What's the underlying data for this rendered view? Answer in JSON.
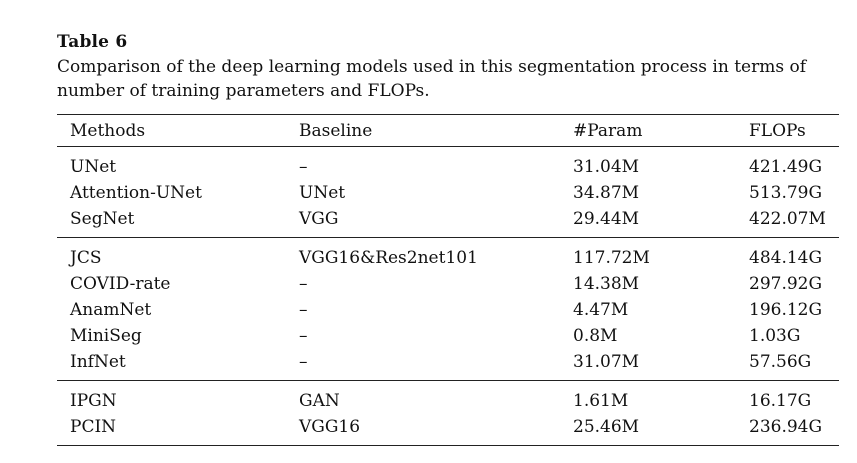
{
  "caption": {
    "label": "Table 6",
    "text": "Comparison of the deep learning models used in this segmentation process in terms of number of training parameters and FLOPs."
  },
  "table": {
    "headers": [
      "Methods",
      "Baseline",
      "#Param",
      "FLOPs"
    ],
    "groups": [
      {
        "rows": [
          [
            "UNet",
            "–",
            "31.04M",
            "421.49G"
          ],
          [
            "Attention-UNet",
            "UNet",
            "34.87M",
            "513.79G"
          ],
          [
            "SegNet",
            "VGG",
            "29.44M",
            "422.07M"
          ]
        ]
      },
      {
        "rows": [
          [
            "JCS",
            "VGG16&Res2net101",
            "117.72M",
            "484.14G"
          ],
          [
            "COVID-rate",
            "–",
            "14.38M",
            "297.92G"
          ],
          [
            "AnamNet",
            "–",
            "4.47M",
            "196.12G"
          ],
          [
            "MiniSeg",
            "–",
            "0.8M",
            "1.03G"
          ],
          [
            "InfNet",
            "–",
            "31.07M",
            "57.56G"
          ]
        ]
      },
      {
        "rows": [
          [
            "IPGN",
            "GAN",
            "1.61M",
            "16.17G"
          ],
          [
            "PCIN",
            "VGG16",
            "25.46M",
            "236.94G"
          ]
        ]
      }
    ]
  }
}
